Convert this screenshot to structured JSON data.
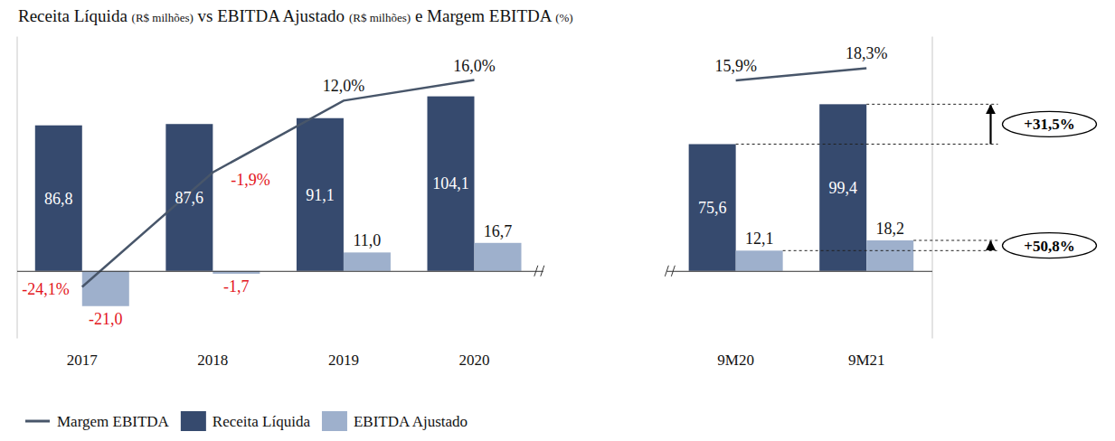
{
  "chart_data": {
    "type": "bar",
    "title": "Receita Líquida (R$ milhões) vs EBITDA Ajustado (R$ milhões) e Margem EBITDA (%)",
    "categories": [
      "2017",
      "2018",
      "2019",
      "2020",
      null,
      "9M20",
      "9M21"
    ],
    "series": [
      {
        "name": "Margem EBITDA",
        "type": "line",
        "axis": "y2",
        "color": "#48566a",
        "values": [
          -24.1,
          -1.9,
          12.0,
          16.0,
          null,
          15.9,
          18.3
        ],
        "value_labels": [
          "-24,1%",
          "-1,9%",
          "12,0%",
          "16,0%",
          null,
          "15,9%",
          "18,3%"
        ]
      },
      {
        "name": "Receita Líquida",
        "type": "bar",
        "color": "#364a6e",
        "values": [
          86.8,
          87.6,
          91.1,
          104.1,
          null,
          75.6,
          99.4
        ],
        "value_labels": [
          "86,8",
          "87,6",
          "91,1",
          "104,1",
          null,
          "75,6",
          "99,4"
        ]
      },
      {
        "name": "EBITDA Ajustado",
        "type": "bar",
        "color": "#9eb0cc",
        "values": [
          -21.0,
          -1.7,
          11.0,
          16.7,
          null,
          12.1,
          18.2
        ],
        "value_labels": [
          "-21,0",
          "-1,7",
          "11,0",
          "16,7",
          null,
          "12,1",
          "18,2"
        ]
      }
    ],
    "ylim": [
      -40,
      140
    ],
    "y2lim": [
      -34,
      24.5
    ],
    "data_labels": true,
    "tick_labels": "x",
    "legend": "bottom",
    "annotations": [
      {
        "text": "+31,5%",
        "series": "Receita Líquida"
      },
      {
        "text": "+50,8%",
        "series": "EBITDA Ajustado"
      }
    ]
  }
}
